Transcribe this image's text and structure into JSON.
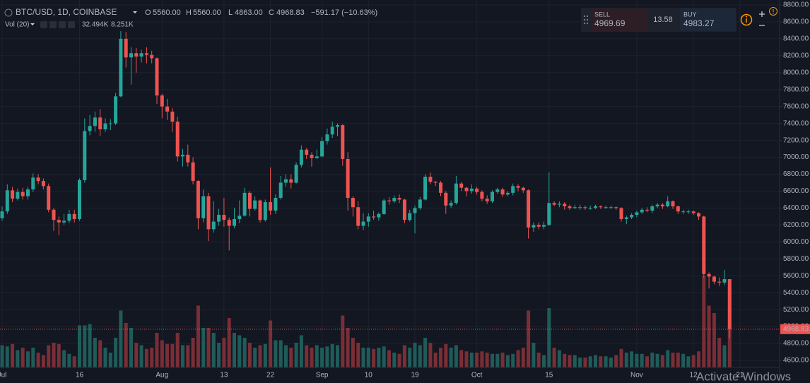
{
  "chart_data": {
    "type": "candlestick",
    "symbol": "BTC/USD, 1D, COINBASE",
    "ohlc_keys": {
      "open": "O",
      "high": "H",
      "low": "L",
      "close": "C"
    },
    "ohlc_labels": {
      "open": "5560.00",
      "high": "5560.00",
      "low": "4863.00",
      "close": "4968.83"
    },
    "change_label": "−591.17 (−10.63%)",
    "volume_title": "Vol (20)",
    "volume_label": "32.494K",
    "volume_ma_label": "8.251K",
    "last_price": {
      "value": 4968.83,
      "label": "4968.83"
    },
    "widget": {
      "sell": "SELL",
      "sell_price": "4969.69",
      "spread": "13.58",
      "buy": "BUY",
      "buy_price": "4983.27"
    },
    "watermark": "Activate Windows",
    "up_color": "#26a69a",
    "down_color": "#ef5350",
    "volume_up_color": "#1f5c59",
    "volume_down_color": "#7a2e35",
    "grid": true,
    "ylim": [
      4600,
      8800
    ],
    "yticks": [
      {
        "value": 4600,
        "label": "4600.00"
      },
      {
        "value": 4800,
        "label": "4800.00"
      },
      {
        "value": 5000,
        "label": "5000.00"
      },
      {
        "value": 5200,
        "label": "5200.00"
      },
      {
        "value": 5400,
        "label": "5400.00"
      },
      {
        "value": 5600,
        "label": "5600.00"
      },
      {
        "value": 5800,
        "label": "5800.00"
      },
      {
        "value": 6000,
        "label": "6000.00"
      },
      {
        "value": 6200,
        "label": "6200.00"
      },
      {
        "value": 6400,
        "label": "6400.00"
      },
      {
        "value": 6600,
        "label": "6600.00"
      },
      {
        "value": 6800,
        "label": "6800.00"
      },
      {
        "value": 7000,
        "label": "7000.00"
      },
      {
        "value": 7200,
        "label": "7200.00"
      },
      {
        "value": 7400,
        "label": "7400.00"
      },
      {
        "value": 7600,
        "label": "7600.00"
      },
      {
        "value": 7800,
        "label": "7800.00"
      },
      {
        "value": 8000,
        "label": "8000.00"
      },
      {
        "value": 8200,
        "label": "8200.00"
      },
      {
        "value": 8400,
        "label": "8400.00"
      },
      {
        "value": 8600,
        "label": "8600.00"
      },
      {
        "value": 8800,
        "label": "8800.00"
      }
    ],
    "categories": [
      "Jul",
      null,
      null,
      null,
      null,
      null,
      null,
      null,
      null,
      null,
      null,
      null,
      null,
      null,
      null,
      "16",
      null,
      null,
      null,
      null,
      null,
      null,
      null,
      null,
      null,
      null,
      null,
      null,
      null,
      null,
      null,
      "Aug",
      null,
      null,
      null,
      null,
      null,
      null,
      null,
      null,
      null,
      null,
      null,
      "13",
      null,
      null,
      null,
      null,
      null,
      null,
      null,
      null,
      "22",
      null,
      null,
      null,
      null,
      null,
      null,
      null,
      null,
      null,
      "Sep",
      null,
      null,
      null,
      null,
      null,
      null,
      null,
      null,
      "10",
      null,
      null,
      null,
      null,
      null,
      null,
      null,
      null,
      "19",
      null,
      null,
      null,
      null,
      null,
      null,
      null,
      null,
      null,
      null,
      null,
      "Oct",
      null,
      null,
      null,
      null,
      null,
      null,
      null,
      null,
      null,
      null,
      null,
      null,
      null,
      "15",
      null,
      null,
      null,
      null,
      null,
      null,
      null,
      null,
      null,
      null,
      null,
      null,
      null,
      null,
      null,
      null,
      "Nov",
      null,
      null,
      null,
      null,
      null,
      null,
      null,
      null,
      null,
      null,
      "12",
      null,
      null,
      null,
      null,
      null,
      null,
      null,
      null,
      "21"
    ],
    "open": [
      6280,
      6360,
      6610,
      6510,
      6590,
      6540,
      6620,
      6760,
      6720,
      6660,
      6380,
      6260,
      6230,
      6250,
      6330,
      6270,
      6730,
      7310,
      7370,
      7470,
      7330,
      7400,
      7400,
      7720,
      8400,
      8180,
      8230,
      8190,
      8230,
      8210,
      8170,
      7730,
      7600,
      7540,
      7420,
      7010,
      7030,
      6940,
      6720,
      6280,
      6540,
      6150,
      6240,
      6320,
      6260,
      6190,
      6270,
      6310,
      6580,
      6390,
      6490,
      6260,
      6470,
      6370,
      6520,
      6700,
      6740,
      6700,
      6910,
      7090,
      7030,
      6990,
      7010,
      7190,
      7270,
      7360,
      7380,
      6980,
      6520,
      6410,
      6190,
      6240,
      6300,
      6290,
      6330,
      6490,
      6480,
      6520,
      6500,
      6260,
      6340,
      6400,
      6500,
      6770,
      6710,
      6700,
      6580,
      6430,
      6460,
      6690,
      6640,
      6600,
      6630,
      6590,
      6510,
      6480,
      6590,
      6620,
      6560,
      6580,
      6660,
      6640,
      6610,
      6170,
      6200,
      6180,
      6200,
      6460,
      6440,
      6450,
      6420,
      6400,
      6410,
      6410,
      6400,
      6400,
      6420,
      6410,
      6410,
      6410,
      6400,
      6270,
      6290,
      6320,
      6350,
      6380,
      6370,
      6420,
      6440,
      6420,
      6480,
      6420,
      6360,
      6360,
      6360,
      6340,
      6300,
      5620,
      5590,
      5530,
      5520,
      5560,
      null,
      null
    ],
    "high": [
      6420,
      6680,
      6650,
      6630,
      6640,
      6650,
      6810,
      6800,
      6750,
      6690,
      6400,
      6300,
      6330,
      6380,
      6380,
      6750,
      7460,
      7500,
      7540,
      7570,
      7460,
      7450,
      7760,
      8490,
      8480,
      8300,
      8290,
      8270,
      8300,
      8260,
      8180,
      7750,
      7690,
      7580,
      7480,
      7100,
      7150,
      7000,
      6730,
      6620,
      6580,
      6480,
      6390,
      6520,
      6290,
      6400,
      6490,
      6640,
      6600,
      6540,
      6500,
      6500,
      6880,
      6560,
      6780,
      6800,
      6800,
      6940,
      7140,
      7110,
      7060,
      7090,
      7240,
      7340,
      7420,
      7400,
      7390,
      7060,
      6540,
      6480,
      6340,
      6340,
      6370,
      6350,
      6510,
      6530,
      6550,
      6560,
      6510,
      6380,
      6430,
      6530,
      6800,
      6820,
      6720,
      6720,
      6600,
      6490,
      6780,
      6710,
      6650,
      6680,
      6650,
      6610,
      6550,
      6610,
      6640,
      6640,
      6600,
      6690,
      6680,
      6650,
      6620,
      6230,
      6230,
      6240,
      6820,
      6480,
      6480,
      6470,
      6440,
      6440,
      6440,
      6430,
      6430,
      6440,
      6430,
      6430,
      6430,
      6420,
      6410,
      6310,
      6340,
      6370,
      6400,
      6410,
      6440,
      6460,
      6460,
      6540,
      6490,
      6430,
      6380,
      6380,
      6370,
      6350,
      6310,
      5640,
      5600,
      5580,
      5670,
      5560,
      null,
      null
    ],
    "low": [
      6250,
      6330,
      6470,
      6490,
      6500,
      6500,
      6590,
      6680,
      6620,
      6350,
      6130,
      6080,
      6200,
      6220,
      6230,
      6250,
      6700,
      7260,
      7300,
      7250,
      7300,
      7320,
      7380,
      7710,
      8060,
      7860,
      8000,
      8120,
      8110,
      8110,
      7630,
      7460,
      7440,
      7300,
      6950,
      6890,
      6890,
      6680,
      6150,
      6230,
      6010,
      6110,
      6190,
      6180,
      5900,
      6160,
      6220,
      6300,
      6300,
      6370,
      6230,
      6240,
      6320,
      6330,
      6500,
      6650,
      6630,
      6690,
      6880,
      6980,
      6890,
      6980,
      7000,
      7150,
      7230,
      7250,
      6900,
      6370,
      6300,
      6150,
      6140,
      6180,
      6260,
      6250,
      6320,
      6440,
      6460,
      6460,
      6220,
      6240,
      6100,
      6380,
      6490,
      6680,
      6660,
      6540,
      6330,
      6400,
      6440,
      6600,
      6540,
      6570,
      6560,
      6480,
      6450,
      6460,
      6570,
      6530,
      6540,
      6550,
      6600,
      6580,
      6040,
      6120,
      6150,
      6150,
      6190,
      6420,
      6410,
      6380,
      6380,
      6390,
      6380,
      6380,
      6380,
      6390,
      6390,
      6390,
      6390,
      6380,
      6240,
      6210,
      6270,
      6290,
      6330,
      6350,
      6340,
      6400,
      6390,
      6410,
      6390,
      6330,
      6330,
      6330,
      6320,
      6260,
      5580,
      5450,
      5500,
      5480,
      5490,
      4863,
      null,
      null
    ],
    "close": [
      6360,
      6610,
      6510,
      6590,
      6540,
      6620,
      6760,
      6720,
      6660,
      6380,
      6260,
      6230,
      6250,
      6330,
      6270,
      6730,
      7310,
      7370,
      7470,
      7330,
      7400,
      7400,
      7720,
      8400,
      8180,
      8230,
      8190,
      8230,
      8210,
      8170,
      7730,
      7600,
      7540,
      7420,
      7010,
      7030,
      6940,
      6720,
      6280,
      6540,
      6150,
      6240,
      6320,
      6260,
      6190,
      6270,
      6310,
      6580,
      6390,
      6490,
      6260,
      6470,
      6370,
      6520,
      6700,
      6740,
      6700,
      6910,
      7090,
      7030,
      6990,
      7010,
      7190,
      7270,
      7360,
      7380,
      6980,
      6520,
      6410,
      6190,
      6240,
      6300,
      6290,
      6330,
      6490,
      6480,
      6520,
      6500,
      6260,
      6340,
      6400,
      6500,
      6770,
      6710,
      6700,
      6580,
      6430,
      6460,
      6690,
      6640,
      6600,
      6630,
      6590,
      6510,
      6480,
      6590,
      6620,
      6560,
      6580,
      6660,
      6640,
      6610,
      6170,
      6200,
      6180,
      6200,
      6460,
      6440,
      6450,
      6420,
      6400,
      6410,
      6410,
      6400,
      6400,
      6420,
      6410,
      6410,
      6410,
      6400,
      6270,
      6290,
      6320,
      6350,
      6380,
      6370,
      6420,
      6440,
      6420,
      6480,
      6420,
      6360,
      6360,
      6360,
      6340,
      6300,
      5620,
      5590,
      5530,
      5520,
      5560,
      4968.83,
      null,
      null
    ],
    "volume": [
      9000,
      8500,
      9500,
      7000,
      8000,
      6500,
      8000,
      6000,
      5000,
      9000,
      10000,
      9500,
      7000,
      5500,
      4500,
      17000,
      17000,
      17500,
      12000,
      11000,
      8000,
      6000,
      12000,
      23000,
      18000,
      16000,
      10000,
      9000,
      7500,
      8000,
      14000,
      11000,
      9500,
      9500,
      14000,
      9000,
      9000,
      12000,
      25000,
      16000,
      16000,
      14000,
      10000,
      12000,
      20000,
      14000,
      13000,
      12000,
      10000,
      8000,
      9000,
      9500,
      19000,
      11000,
      11000,
      9000,
      8000,
      10000,
      13000,
      9000,
      8000,
      9000,
      8000,
      8500,
      9500,
      9000,
      21000,
      16000,
      12000,
      10000,
      8000,
      8000,
      7500,
      8000,
      8500,
      7000,
      6000,
      5500,
      9000,
      8000,
      10000,
      9000,
      12000,
      10000,
      6000,
      8000,
      9500,
      8000,
      9000,
      7000,
      6500,
      6000,
      6000,
      6500,
      6000,
      5500,
      5500,
      6000,
      5000,
      5500,
      7000,
      8000,
      23000,
      10000,
      6000,
      5000,
      24000,
      8000,
      7000,
      5500,
      5000,
      5000,
      4000,
      4000,
      4500,
      5000,
      4500,
      4500,
      4000,
      5000,
      7500,
      6000,
      6500,
      5500,
      5500,
      4500,
      6000,
      5500,
      5000,
      7000,
      6000,
      6000,
      5500,
      4500,
      5000,
      6500,
      37000,
      25000,
      22000,
      12000,
      9000,
      32494,
      null,
      null
    ]
  }
}
